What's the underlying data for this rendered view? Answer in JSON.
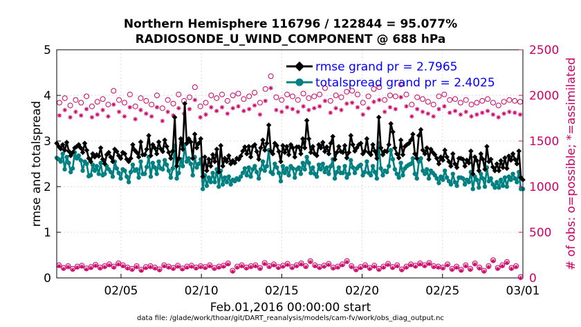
{
  "colors": {
    "rmse": "#000000",
    "spread": "#008080",
    "obs": "#cc0066",
    "legend_text": "#0000ff",
    "grid": "#d9d9d9"
  },
  "chart_data": {
    "type": "line",
    "title_line1": "Northern Hemisphere 116796 / 122844 = 95.077%",
    "title_line2": "RADIOSONDE_U_WIND_COMPONENT @ 688 hPa",
    "ylabel_left": "rmse and totalspread",
    "ylabel_right": "# of obs: o=possible; *=assimilated",
    "xlabel": "Feb.01,2016 00:00:00 start",
    "footer": "data file: /glade/work/thoar/git/DART_reanalysis/models/cam-fv/work/obs_diag_output.nc",
    "xlim": [
      1,
      30
    ],
    "ylim_left": [
      0,
      5
    ],
    "ylim_right": [
      0,
      2500
    ],
    "x_ticks": [
      5,
      10,
      15,
      20,
      25,
      30
    ],
    "x_tick_labels": [
      "02/05",
      "02/10",
      "02/15",
      "02/20",
      "02/25",
      "03/01"
    ],
    "y_ticks_left": [
      0,
      1,
      2,
      3,
      4,
      5
    ],
    "y_tick_labels_left": [
      "0",
      "1",
      "2",
      "3",
      "4",
      "5"
    ],
    "y_ticks_right": [
      0,
      500,
      1000,
      1500,
      2000,
      2500
    ],
    "y_tick_labels_right": [
      "0",
      "500",
      "1000",
      "1500",
      "2000",
      "2500"
    ],
    "legend": [
      {
        "key": "rmse",
        "label": "rmse grand pr = 2.7965"
      },
      {
        "key": "spread",
        "label": "totalspread grand pr = 2.4025"
      }
    ],
    "series": [
      {
        "name": "rmse",
        "values": [
          2.95,
          2.88,
          2.83,
          2.92,
          2.8,
          2.97,
          2.78,
          2.68,
          2.75,
          2.85,
          2.88,
          2.92,
          2.85,
          2.75,
          2.95,
          2.8,
          2.62,
          2.55,
          2.72,
          2.65,
          2.7,
          2.67,
          2.85,
          2.6,
          2.5,
          2.7,
          2.75,
          2.65,
          2.55,
          2.82,
          2.77,
          2.68,
          2.62,
          2.75,
          2.72,
          2.6,
          2.55,
          2.62,
          2.92,
          2.8,
          2.75,
          2.65,
          2.98,
          2.7,
          2.7,
          2.82,
          3.12,
          2.68,
          2.92,
          2.85,
          2.72,
          2.98,
          2.83,
          2.77,
          3.02,
          2.88,
          2.75,
          2.62,
          2.78,
          3.52,
          2.45,
          2.62,
          3.05,
          2.82,
          3.82,
          2.95,
          3.05,
          2.98,
          2.62,
          3.15,
          2.85,
          2.95,
          3.05,
          2.22,
          2.65,
          2.35,
          2.6,
          2.45,
          2.7,
          2.55,
          2.82,
          2.32,
          2.9,
          2.45,
          2.62,
          2.55,
          2.68,
          2.5,
          2.57,
          2.52,
          2.62,
          2.6,
          2.67,
          2.78,
          2.87,
          2.72,
          2.88,
          2.65,
          2.88,
          2.92,
          2.77,
          2.6,
          2.85,
          3.02,
          2.8,
          2.95,
          3.35,
          2.78,
          2.72,
          2.95,
          2.9,
          2.77,
          2.55,
          2.9,
          2.75,
          2.88,
          2.7,
          2.92,
          2.85,
          2.65,
          2.87,
          2.87,
          2.72,
          3.05,
          2.85,
          3.45,
          3.05,
          2.75,
          2.88,
          2.72,
          2.68,
          2.92,
          2.85,
          2.97,
          2.77,
          2.87,
          2.72,
          2.95,
          3.1,
          2.6,
          2.75,
          2.88,
          2.77,
          2.75,
          2.9,
          2.63,
          2.75,
          3.12,
          2.92,
          2.78,
          2.85,
          2.92,
          2.95,
          2.72,
          2.78,
          3.05,
          2.75,
          2.7,
          2.92,
          2.78,
          2.62,
          3.52,
          2.85,
          2.7,
          2.78,
          2.77,
          2.92,
          3.38,
          3.2,
          2.85,
          2.72,
          2.63,
          3.02,
          2.7,
          2.88,
          2.92,
          2.95,
          3.02,
          3.15,
          2.72,
          2.62,
          3.12,
          3.25,
          2.8,
          2.72,
          2.85,
          2.6,
          2.82,
          2.75,
          2.7,
          2.62,
          2.5,
          2.65,
          2.58,
          2.8,
          2.65,
          2.55,
          2.45,
          2.72,
          2.5,
          2.42,
          2.62,
          2.62,
          2.6,
          2.45,
          2.58,
          2.52,
          2.78,
          2.28,
          2.65,
          2.57,
          2.35,
          2.72,
          2.6,
          2.38,
          2.88,
          2.55,
          2.6,
          2.43,
          2.35,
          2.5,
          2.35,
          2.57,
          2.42,
          2.63,
          2.4,
          2.67,
          2.58,
          2.72,
          2.6,
          2.5,
          2.78,
          2.2,
          2.15
        ]
      },
      {
        "name": "totalspread",
        "values": [
          2.63,
          2.6,
          2.55,
          2.72,
          2.38,
          2.65,
          2.52,
          2.32,
          2.4,
          2.75,
          2.62,
          2.68,
          2.58,
          2.35,
          2.55,
          2.5,
          2.23,
          2.25,
          2.48,
          2.35,
          2.45,
          2.28,
          2.52,
          2.25,
          2.28,
          2.45,
          2.38,
          2.32,
          2.22,
          2.55,
          2.4,
          2.3,
          2.18,
          2.38,
          2.35,
          2.22,
          2.1,
          2.32,
          2.48,
          2.35,
          2.38,
          2.2,
          2.55,
          2.28,
          2.28,
          2.43,
          2.65,
          2.22,
          2.52,
          2.42,
          2.28,
          2.55,
          2.4,
          2.38,
          2.58,
          2.48,
          2.35,
          2.2,
          2.4,
          2.9,
          2.18,
          2.3,
          2.6,
          2.45,
          2.92,
          2.55,
          2.62,
          2.5,
          2.25,
          2.65,
          2.42,
          2.5,
          2.6,
          1.95,
          2.25,
          2.02,
          2.2,
          2.1,
          2.3,
          2.1,
          2.38,
          2.0,
          2.35,
          2.05,
          2.2,
          2.1,
          2.22,
          2.05,
          2.15,
          2.12,
          2.18,
          2.15,
          2.22,
          2.3,
          2.4,
          2.25,
          2.42,
          2.22,
          2.38,
          2.45,
          2.32,
          2.18,
          2.38,
          2.55,
          2.35,
          2.45,
          2.8,
          2.32,
          2.28,
          2.5,
          2.42,
          2.3,
          2.12,
          2.45,
          2.3,
          2.4,
          2.25,
          2.45,
          2.4,
          2.2,
          2.38,
          2.42,
          2.28,
          2.52,
          2.38,
          2.65,
          2.52,
          2.3,
          2.42,
          2.28,
          2.22,
          2.48,
          2.38,
          2.5,
          2.32,
          2.42,
          2.28,
          2.45,
          2.6,
          2.18,
          2.32,
          2.42,
          2.3,
          2.3,
          2.45,
          2.2,
          2.28,
          2.58,
          2.42,
          2.3,
          2.4,
          2.45,
          2.48,
          2.25,
          2.32,
          2.55,
          2.3,
          2.25,
          2.45,
          2.32,
          2.18,
          2.95,
          2.4,
          2.25,
          2.35,
          2.32,
          2.45,
          2.8,
          2.6,
          2.38,
          2.28,
          2.2,
          2.52,
          2.25,
          2.4,
          2.45,
          2.48,
          2.5,
          2.62,
          2.28,
          2.18,
          2.55,
          2.62,
          2.35,
          2.28,
          2.38,
          2.18,
          2.35,
          2.3,
          2.25,
          2.18,
          2.08,
          2.22,
          2.15,
          2.35,
          2.2,
          2.12,
          2.05,
          2.28,
          2.1,
          2.02,
          2.2,
          2.2,
          2.18,
          2.05,
          2.15,
          2.1,
          2.32,
          1.95,
          2.22,
          2.15,
          1.98,
          2.28,
          2.18,
          2.0,
          2.42,
          2.12,
          2.18,
          2.05,
          1.98,
          2.1,
          1.98,
          2.15,
          2.02,
          2.2,
          2.0,
          2.22,
          2.15,
          2.28,
          2.18,
          2.1,
          2.32,
          1.95,
          1.95
        ]
      }
    ],
    "obs_day_possible": [
      1920,
      1970,
      1890,
      1950,
      1920,
      1990,
      1880,
      1930,
      1960,
      1900,
      2050,
      1950,
      1920,
      2010,
      1880,
      1970,
      1940,
      1900,
      2000,
      1860,
      1950,
      1910,
      2010,
      1940,
      1980,
      2090,
      1880,
      1920,
      2000,
      1970,
      2010,
      1940,
      2000,
      2020,
      1960,
      1990,
      2030,
      1920,
      2070,
      2210,
      1980,
      1950,
      2010,
      1990,
      1950,
      2020,
      1970,
      1990,
      2010,
      2080,
      1940,
      2000,
      1980,
      2040,
      2050,
      2010,
      1920,
      1990,
      2070,
      2090,
      1950,
      2000,
      1990,
      2120,
      2010,
      1900,
      1980,
      1960,
      1930,
      1900,
      1990,
      2010,
      1950,
      1960,
      1920,
      1950,
      1900,
      1920,
      1940,
      1960,
      1920,
      1890,
      1930,
      1950,
      1940,
      1930
    ],
    "obs_day_assimilated": [
      1780,
      1840,
      1760,
      1820,
      1780,
      1850,
      1760,
      1790,
      1840,
      1770,
      1900,
      1820,
      1770,
      1870,
      1740,
      1840,
      1800,
      1770,
      1870,
      1720,
      1820,
      1780,
      1860,
      1800,
      1850,
      1950,
      1760,
      1790,
      1870,
      1830,
      1870,
      1800,
      1860,
      1880,
      1830,
      1850,
      1890,
      1790,
      1940,
      2080,
      1840,
      1820,
      1870,
      1850,
      1820,
      1880,
      1840,
      1860,
      1880,
      1940,
      1810,
      1860,
      1840,
      1910,
      1920,
      1870,
      1790,
      1860,
      1930,
      1950,
      1820,
      1870,
      1850,
      1980,
      1880,
      1770,
      1850,
      1820,
      1800,
      1770,
      1850,
      1880,
      1810,
      1830,
      1790,
      1820,
      1770,
      1790,
      1810,
      1830,
      1790,
      1760,
      1800,
      1820,
      1810,
      1790
    ],
    "obs_night_possible": [
      140,
      110,
      130,
      100,
      125,
      135,
      105,
      120,
      145,
      115,
      130,
      150,
      125,
      160,
      140,
      115,
      100,
      130,
      90,
      120,
      130,
      115,
      95,
      140,
      125,
      110,
      135,
      105,
      125,
      135,
      115,
      130,
      120,
      140,
      110,
      125,
      135,
      160,
      80,
      125,
      140,
      115,
      130,
      140,
      110,
      165,
      130,
      150,
      120,
      135,
      155,
      120,
      140,
      160,
      130,
      185,
      140,
      120,
      135,
      155,
      115,
      125,
      150,
      185,
      130,
      95,
      120,
      140,
      110,
      135,
      100,
      125,
      155,
      120,
      140,
      95,
      125,
      150,
      135,
      160,
      140,
      165,
      130,
      125,
      115,
      150,
      100,
      125,
      90,
      140,
      100,
      160,
      115,
      80,
      130,
      195,
      110,
      140,
      175,
      110,
      130,
      10
    ],
    "obs_night_assimilated": [
      130,
      100,
      120,
      90,
      115,
      125,
      95,
      110,
      135,
      105,
      120,
      140,
      115,
      150,
      130,
      105,
      90,
      120,
      80,
      110,
      120,
      105,
      85,
      130,
      115,
      100,
      125,
      95,
      115,
      125,
      105,
      120,
      110,
      130,
      100,
      115,
      125,
      150,
      70,
      115,
      130,
      105,
      120,
      130,
      100,
      155,
      120,
      140,
      110,
      125,
      145,
      110,
      130,
      150,
      120,
      175,
      130,
      110,
      125,
      145,
      105,
      115,
      140,
      175,
      120,
      85,
      110,
      130,
      100,
      125,
      90,
      115,
      145,
      110,
      130,
      85,
      115,
      140,
      125,
      150,
      130,
      155,
      120,
      115,
      105,
      140,
      90,
      115,
      80,
      130,
      90,
      150,
      105,
      70,
      120,
      185,
      100,
      130,
      165,
      100,
      120,
      0
    ]
  }
}
